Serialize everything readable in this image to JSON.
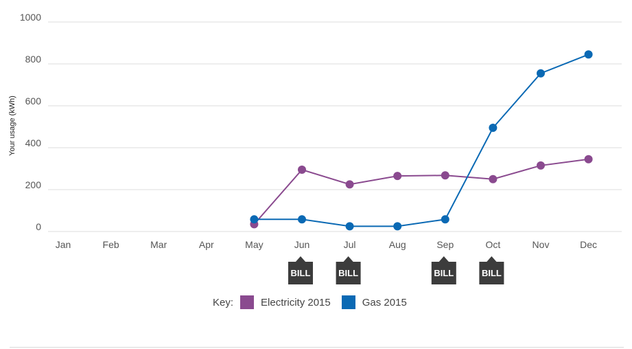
{
  "chart_data": {
    "type": "line",
    "ylabel": "Your usage (kWh)",
    "ylim": [
      0,
      1000
    ],
    "yticks": [
      0,
      200,
      400,
      600,
      800,
      1000
    ],
    "categories": [
      "Jan",
      "Feb",
      "Mar",
      "Apr",
      "May",
      "Jun",
      "Jul",
      "Aug",
      "Sep",
      "Oct",
      "Nov",
      "Dec"
    ],
    "grid": true,
    "series": [
      {
        "name": "Electricity 2015",
        "color": "#8a4a8f",
        "values": [
          null,
          null,
          null,
          null,
          35,
          295,
          225,
          265,
          268,
          250,
          315,
          345
        ]
      },
      {
        "name": "Gas 2015",
        "color": "#0a69b4",
        "values": [
          null,
          null,
          null,
          null,
          58,
          58,
          25,
          25,
          58,
          495,
          755,
          845
        ]
      }
    ],
    "bill_markers": {
      "label": "BILL",
      "months": [
        "Jun",
        "Jul",
        "Sep",
        "Oct"
      ]
    },
    "legend_position": "bottom"
  },
  "legend": {
    "key_label": "Key:"
  }
}
